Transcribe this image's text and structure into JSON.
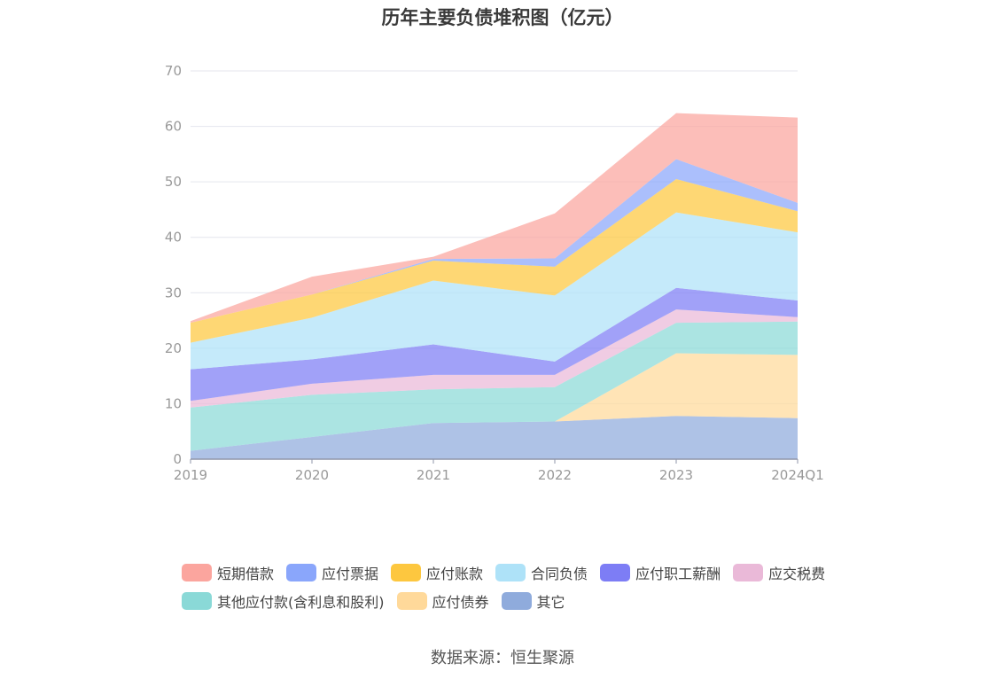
{
  "chart_data": {
    "type": "area",
    "stacked": true,
    "title": "历年主要负债堆积图（亿元）",
    "categories": [
      "2019",
      "2020",
      "2021",
      "2022",
      "2023",
      "2024Q1"
    ],
    "ylim": [
      0,
      70
    ],
    "yticks": [
      0,
      10,
      20,
      30,
      40,
      50,
      60,
      70
    ],
    "grid": true,
    "legend_position": "bottom",
    "series": [
      {
        "name": "其它",
        "color": "#8fabdc",
        "values": [
          1.5,
          4.0,
          6.5,
          6.8,
          7.8,
          7.4
        ]
      },
      {
        "name": "应付债券",
        "color": "#ffd99a",
        "values": [
          0,
          0,
          0,
          0,
          11.3,
          11.4
        ]
      },
      {
        "name": "其他应付款(含利息和股利)",
        "color": "#8ad9d7",
        "values": [
          7.8,
          7.6,
          6.1,
          6.2,
          5.5,
          6.0
        ]
      },
      {
        "name": "应交税费",
        "color": "#eab9d8",
        "values": [
          1.2,
          2.0,
          2.6,
          2.2,
          2.4,
          0.8
        ]
      },
      {
        "name": "应付职工薪酬",
        "color": "#7d7df5",
        "values": [
          5.7,
          4.4,
          5.5,
          2.4,
          3.9,
          3.0
        ]
      },
      {
        "name": "合同负债",
        "color": "#aee2f8",
        "values": [
          4.8,
          7.5,
          11.5,
          11.9,
          13.6,
          12.3
        ]
      },
      {
        "name": "应付账款",
        "color": "#fdc73f",
        "values": [
          3.6,
          4.2,
          3.6,
          5.2,
          6.0,
          3.8
        ]
      },
      {
        "name": "应付票据",
        "color": "#8aa6fb",
        "values": [
          0,
          0,
          0.3,
          1.5,
          3.6,
          1.5
        ]
      },
      {
        "name": "短期借款",
        "color": "#fba59e",
        "values": [
          0.3,
          3.2,
          0.4,
          8.1,
          8.3,
          15.4
        ]
      }
    ]
  },
  "legend": {
    "row1": [
      "短期借款",
      "应付票据",
      "应付账款",
      "合同负债",
      "应付职工薪酬",
      "应交税费"
    ],
    "row2": [
      "其他应付款(含利息和股利)",
      "应付债券",
      "其它"
    ]
  },
  "source": "数据来源：恒生聚源"
}
